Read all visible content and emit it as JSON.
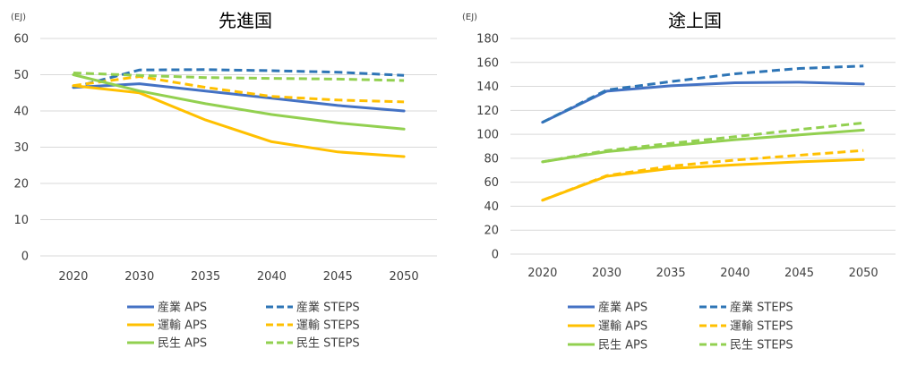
{
  "colors": {
    "sangyo": "#4472C4",
    "sangyo_steps": "#2E75B6",
    "unyu": "#FFC000",
    "minsei": "#92D050",
    "grid": "#D9D9D9",
    "text": "#404040"
  },
  "chart_data": [
    {
      "type": "line",
      "title": "先進国",
      "unit_label": "(EJ)",
      "x": [
        "2020",
        "2030",
        "2035",
        "2040",
        "2045",
        "2050"
      ],
      "yticks": [
        "0",
        "10",
        "20",
        "30",
        "40",
        "50",
        "60"
      ],
      "ylim": [
        0,
        60
      ],
      "grid": true,
      "legend_position": "bottom",
      "series": [
        {
          "name": "産業 APS",
          "color_key": "sangyo",
          "dash": false,
          "values": [
            46.5,
            47.5,
            45.5,
            43.5,
            41.5,
            40
          ]
        },
        {
          "name": "産業 STEPS",
          "color_key": "sangyo_steps",
          "dash": true,
          "values": [
            46.5,
            51.3,
            51.4,
            51.1,
            50.7,
            49.8
          ]
        },
        {
          "name": "運輸 APS",
          "color_key": "unyu",
          "dash": false,
          "values": [
            47,
            45,
            37.5,
            31.5,
            28.7,
            27.4
          ]
        },
        {
          "name": "運輸 STEPS",
          "color_key": "unyu",
          "dash": true,
          "values": [
            47,
            49.5,
            46.5,
            44,
            43,
            42.5
          ]
        },
        {
          "name": "民生 APS",
          "color_key": "minsei",
          "dash": false,
          "values": [
            50,
            45.5,
            42,
            39,
            36.7,
            35
          ]
        },
        {
          "name": "民生 STEPS",
          "color_key": "minsei",
          "dash": true,
          "values": [
            50.5,
            49.8,
            49.2,
            49,
            48.8,
            48.4
          ]
        }
      ]
    },
    {
      "type": "line",
      "title": "途上国",
      "unit_label": "(EJ)",
      "x": [
        "2020",
        "2030",
        "2035",
        "2040",
        "2045",
        "2050"
      ],
      "yticks": [
        "0",
        "20",
        "40",
        "60",
        "80",
        "100",
        "120",
        "140",
        "160",
        "180"
      ],
      "ylim": [
        0,
        180
      ],
      "grid": true,
      "legend_position": "bottom",
      "series": [
        {
          "name": "産業 APS",
          "color_key": "sangyo",
          "dash": false,
          "values": [
            110,
            136,
            140.5,
            143,
            143.5,
            142
          ]
        },
        {
          "name": "産業 STEPS",
          "color_key": "sangyo_steps",
          "dash": true,
          "values": [
            110,
            137,
            144,
            150.5,
            155,
            157
          ]
        },
        {
          "name": "運輸 APS",
          "color_key": "unyu",
          "dash": false,
          "values": [
            45,
            65,
            71.5,
            74.5,
            77,
            79
          ]
        },
        {
          "name": "運輸 STEPS",
          "color_key": "unyu",
          "dash": true,
          "values": [
            45,
            65.5,
            73.5,
            78.5,
            82.5,
            86.5
          ]
        },
        {
          "name": "民生 APS",
          "color_key": "minsei",
          "dash": false,
          "values": [
            77,
            85.5,
            90.5,
            95.5,
            99.5,
            103.5
          ]
        },
        {
          "name": "民生 STEPS",
          "color_key": "minsei",
          "dash": true,
          "values": [
            77,
            86.5,
            92.5,
            98,
            104,
            109.5
          ]
        }
      ]
    }
  ]
}
